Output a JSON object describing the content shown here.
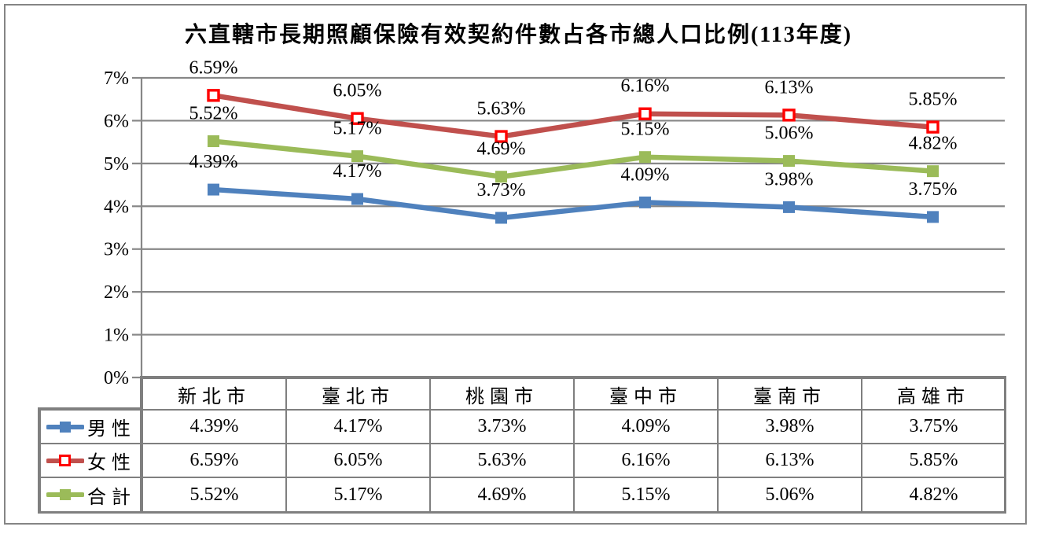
{
  "chart_data": {
    "type": "line",
    "title": "六直轄市長期照顧保險有效契約件數占各市總人口比例(113年度)",
    "categories": [
      "新北市",
      "臺北市",
      "桃園市",
      "臺中市",
      "臺南市",
      "高雄市"
    ],
    "series": [
      {
        "key": "male",
        "name": "男性",
        "color": "#4F81BD",
        "marker": "filled-square",
        "values": [
          4.39,
          4.17,
          3.73,
          4.09,
          3.98,
          3.75
        ]
      },
      {
        "key": "female",
        "name": "女性",
        "color": "#C0504D",
        "marker": "open-square",
        "marker_border": "#FF0000",
        "marker_fill": "#FFFFFF",
        "values": [
          6.59,
          6.05,
          5.63,
          6.16,
          6.13,
          5.85
        ]
      },
      {
        "key": "total",
        "name": "合計",
        "color": "#9BBB59",
        "marker": "filled-square",
        "values": [
          5.52,
          5.17,
          4.69,
          5.15,
          5.06,
          4.82
        ]
      }
    ],
    "y_axis": {
      "min": 0,
      "max": 7,
      "step": 1,
      "tick_labels": [
        "0%",
        "1%",
        "2%",
        "3%",
        "4%",
        "5%",
        "6%",
        "7%"
      ]
    },
    "value_format": "0.00%",
    "grid": true,
    "grid_color": "#878787",
    "data_labels": true,
    "legend_position": "table-left"
  }
}
